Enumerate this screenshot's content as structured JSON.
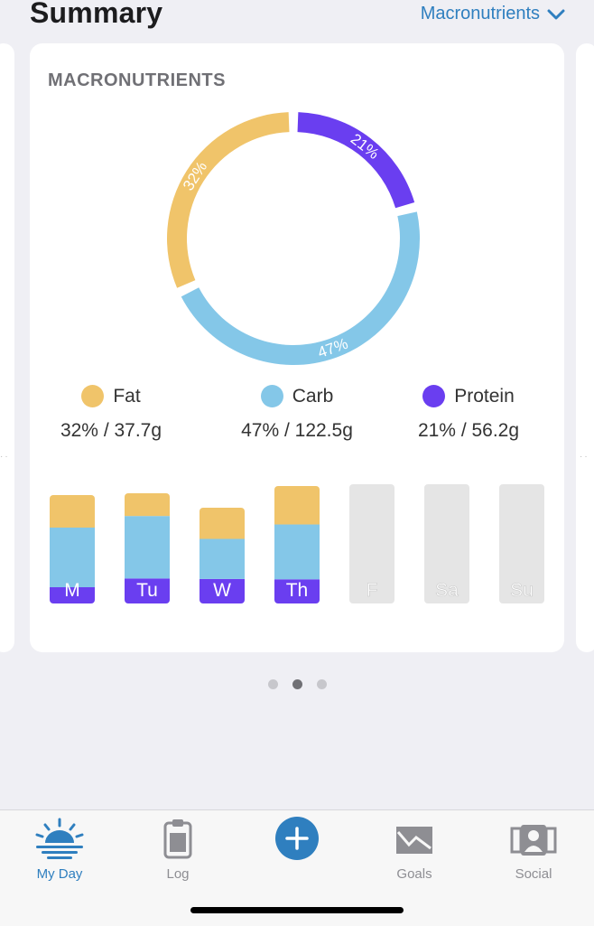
{
  "header": {
    "title": "Summary",
    "selector_label": "Macronutrients"
  },
  "card": {
    "title": "MACRONUTRIENTS",
    "legend": [
      {
        "name": "Fat",
        "value": "32% / 37.7g",
        "color": "#f0c46a"
      },
      {
        "name": "Carb",
        "value": "47% / 122.5g",
        "color": "#84c7e8"
      },
      {
        "name": "Protein",
        "value": "21% / 56.2g",
        "color": "#6a3ef0"
      }
    ]
  },
  "chart_data": [
    {
      "type": "pie",
      "title": "",
      "labels": [
        "Protein",
        "Carb",
        "Fat"
      ],
      "values": [
        21,
        47,
        32
      ],
      "value_labels": [
        "21%",
        "47%",
        "32%"
      ],
      "colors": [
        "#6a3ef0",
        "#84c7e8",
        "#f0c46a"
      ]
    },
    {
      "type": "bar",
      "stacked": true,
      "title": "",
      "categories": [
        "M",
        "Tu",
        "W",
        "Th",
        "F",
        "Sa",
        "Su"
      ],
      "series": [
        {
          "name": "Protein",
          "values": [
            0.15,
            0.22,
            0.22,
            0.22,
            0,
            0,
            0
          ],
          "color": "#6a3ef0"
        },
        {
          "name": "Carb",
          "values": [
            0.55,
            0.55,
            0.36,
            0.5,
            0,
            0,
            0
          ],
          "color": "#84c7e8"
        },
        {
          "name": "Fat",
          "values": [
            0.3,
            0.2,
            0.28,
            0.35,
            0,
            0,
            0
          ],
          "color": "#f0c46a"
        }
      ],
      "empty_color": "#e5e5e5"
    }
  ],
  "pager": {
    "count": 3,
    "active": 1
  },
  "tabbar": {
    "tabs": [
      {
        "label": "My Day",
        "icon": "sunrise-icon",
        "active": true
      },
      {
        "label": "Log",
        "icon": "clipboard-icon",
        "active": false
      },
      {
        "label": "Goals",
        "icon": "envelope-chart-icon",
        "active": false
      },
      {
        "label": "Social",
        "icon": "people-icon",
        "active": false
      }
    ],
    "add_icon": "plus-icon"
  }
}
